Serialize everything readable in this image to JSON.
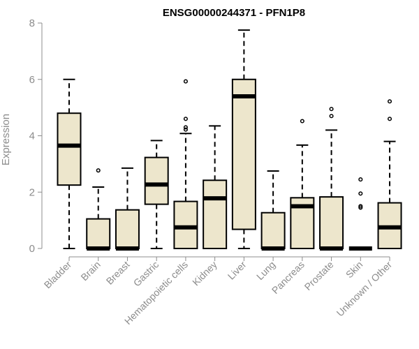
{
  "chart_data": {
    "type": "boxplot",
    "title": "ENSG00000244371 - PFN1P8",
    "xlabel": "",
    "ylabel": "Expression",
    "ylim": [
      0,
      8
    ],
    "yticks": [
      0,
      2,
      4,
      6,
      8
    ],
    "grid": false,
    "legend": "none",
    "box_fill": "#ede6cc",
    "box_stroke": "#000000",
    "axis_color": "#8c8c8c",
    "categories": [
      "Bladder",
      "Brain",
      "Breast",
      "Gastric",
      "Hematopoietic cells",
      "Kidney",
      "Liver",
      "Lung",
      "Pancreas",
      "Prostate",
      "Skin",
      "Unknown / Other"
    ],
    "boxes": [
      {
        "whisker_low": 0,
        "q1": 2.25,
        "median": 3.65,
        "q3": 4.8,
        "whisker_high": 6.0,
        "outliers": []
      },
      {
        "whisker_low": 0,
        "q1": 0,
        "median": 0,
        "q3": 1.05,
        "whisker_high": 2.18,
        "outliers": [
          2.77
        ]
      },
      {
        "whisker_low": 0,
        "q1": 0,
        "median": 0,
        "q3": 1.37,
        "whisker_high": 2.85,
        "outliers": []
      },
      {
        "whisker_low": 0,
        "q1": 1.57,
        "median": 2.27,
        "q3": 3.23,
        "whisker_high": 3.83,
        "outliers": []
      },
      {
        "whisker_low": 0,
        "q1": 0,
        "median": 0.75,
        "q3": 1.67,
        "whisker_high": 4.08,
        "outliers": [
          4.22,
          4.3,
          4.6,
          5.93
        ]
      },
      {
        "whisker_low": 0,
        "q1": 0,
        "median": 1.78,
        "q3": 2.42,
        "whisker_high": 4.35,
        "outliers": []
      },
      {
        "whisker_low": 0,
        "q1": 0.68,
        "median": 5.4,
        "q3": 6.0,
        "whisker_high": 7.75,
        "outliers": []
      },
      {
        "whisker_low": 0,
        "q1": 0,
        "median": 0,
        "q3": 1.27,
        "whisker_high": 2.75,
        "outliers": []
      },
      {
        "whisker_low": 0,
        "q1": 0,
        "median": 1.5,
        "q3": 1.8,
        "whisker_high": 3.67,
        "outliers": [
          4.52
        ]
      },
      {
        "whisker_low": 0,
        "q1": 0,
        "median": 0,
        "q3": 1.83,
        "whisker_high": 4.2,
        "outliers": [
          4.7,
          4.95
        ]
      },
      {
        "whisker_low": 0,
        "q1": 0,
        "median": 0,
        "q3": 0,
        "whisker_high": 0,
        "outliers": [
          1.45,
          1.5,
          1.95,
          2.45
        ]
      },
      {
        "whisker_low": 0,
        "q1": 0,
        "median": 0.75,
        "q3": 1.62,
        "whisker_high": 3.8,
        "outliers": [
          4.6,
          5.22
        ]
      }
    ]
  }
}
